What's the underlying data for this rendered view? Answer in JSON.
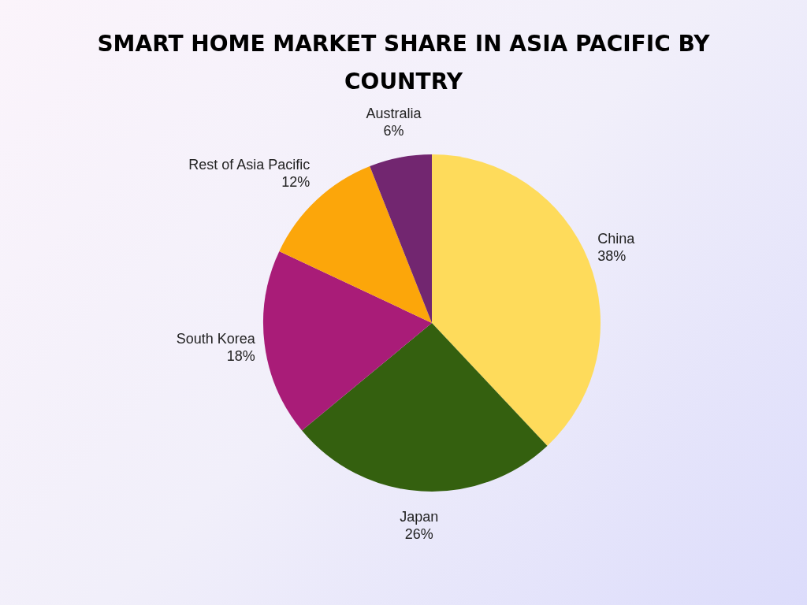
{
  "chart_data": {
    "type": "pie",
    "title": "SMART HOME MARKET SHARE IN ASIA PACIFIC BY COUNTRY",
    "categories": [
      "China",
      "Japan",
      "South Korea",
      "Rest of Asia Pacific",
      "Australia"
    ],
    "values": [
      38,
      26,
      18,
      12,
      6
    ],
    "value_labels": [
      "38%",
      "26%",
      "18%",
      "12%",
      "6%"
    ],
    "colors": [
      "#fedb5b",
      "#34600f",
      "#a91c78",
      "#fca60a",
      "#722670"
    ],
    "legend": false
  }
}
